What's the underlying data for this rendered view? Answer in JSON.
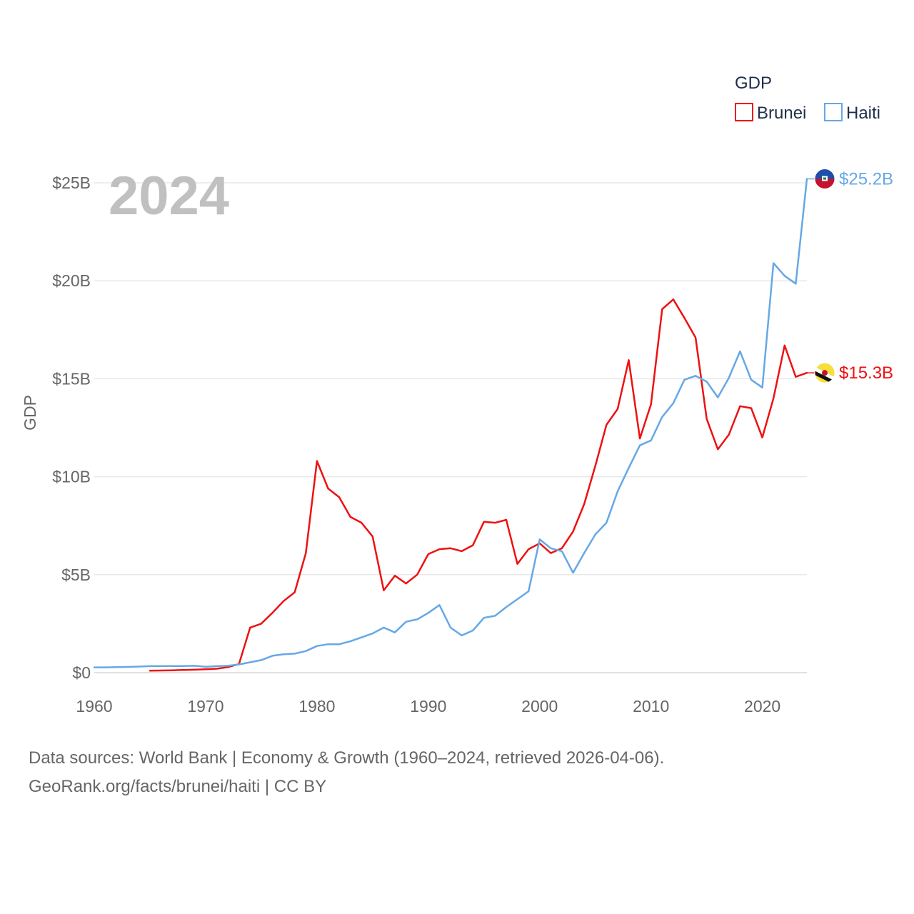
{
  "chart_data": {
    "type": "line",
    "title": "GDP",
    "xlabel": "",
    "ylabel": "GDP",
    "highlight_year": "2024",
    "xlim": [
      1960,
      2024
    ],
    "ylim": [
      0,
      25
    ],
    "x_ticks": [
      1960,
      1970,
      1980,
      1990,
      2000,
      2010,
      2020
    ],
    "x_tick_labels": [
      "1960",
      "1970",
      "1980",
      "1990",
      "2000",
      "2010",
      "2020"
    ],
    "y_ticks": [
      0,
      5,
      10,
      15,
      20,
      25
    ],
    "y_tick_labels": [
      "$0",
      "$5B",
      "$10B",
      "$15B",
      "$20B",
      "$25B"
    ],
    "grid": true,
    "legend": {
      "title": "GDP",
      "position": "top-right"
    },
    "series": [
      {
        "name": "Brunei",
        "color": "#ee1111",
        "icon": "brunei-flag-icon",
        "end_label": "$15.3B",
        "x": [
          1965,
          1966,
          1967,
          1968,
          1969,
          1970,
          1971,
          1972,
          1973,
          1974,
          1975,
          1976,
          1977,
          1978,
          1979,
          1980,
          1981,
          1982,
          1983,
          1984,
          1985,
          1986,
          1987,
          1988,
          1989,
          1990,
          1991,
          1992,
          1993,
          1994,
          1995,
          1996,
          1997,
          1998,
          1999,
          2000,
          2001,
          2002,
          2003,
          2004,
          2005,
          2006,
          2007,
          2008,
          2009,
          2010,
          2011,
          2012,
          2013,
          2014,
          2015,
          2016,
          2017,
          2018,
          2019,
          2020,
          2021,
          2022,
          2023,
          2024
        ],
        "values": [
          0.1,
          0.11,
          0.12,
          0.14,
          0.15,
          0.17,
          0.2,
          0.28,
          0.44,
          2.3,
          2.5,
          3.05,
          3.65,
          4.1,
          6.1,
          10.8,
          9.4,
          8.95,
          7.95,
          7.65,
          6.95,
          4.2,
          4.95,
          4.55,
          5.0,
          6.05,
          6.3,
          6.35,
          6.2,
          6.5,
          7.7,
          7.65,
          7.8,
          5.55,
          6.3,
          6.6,
          6.1,
          6.35,
          7.2,
          8.6,
          10.55,
          12.65,
          13.45,
          15.95,
          11.95,
          13.7,
          18.55,
          19.05,
          18.1,
          17.1,
          12.95,
          11.4,
          12.15,
          13.6,
          13.5,
          12.0,
          14.0,
          16.7,
          15.1,
          15.3
        ]
      },
      {
        "name": "Haiti",
        "color": "#66a8e6",
        "icon": "haiti-flag-icon",
        "end_label": "$25.2B",
        "x": [
          1960,
          1961,
          1962,
          1963,
          1964,
          1965,
          1966,
          1967,
          1968,
          1969,
          1970,
          1971,
          1972,
          1973,
          1974,
          1975,
          1976,
          1977,
          1978,
          1979,
          1980,
          1981,
          1982,
          1983,
          1984,
          1985,
          1986,
          1987,
          1988,
          1989,
          1990,
          1991,
          1992,
          1993,
          1994,
          1995,
          1996,
          1997,
          1998,
          1999,
          2000,
          2001,
          2002,
          2003,
          2004,
          2005,
          2006,
          2007,
          2008,
          2009,
          2010,
          2011,
          2012,
          2013,
          2014,
          2015,
          2016,
          2017,
          2018,
          2019,
          2020,
          2021,
          2022,
          2023,
          2024
        ],
        "values": [
          0.27,
          0.27,
          0.28,
          0.29,
          0.31,
          0.33,
          0.34,
          0.34,
          0.34,
          0.35,
          0.3,
          0.33,
          0.35,
          0.42,
          0.53,
          0.64,
          0.86,
          0.94,
          0.97,
          1.1,
          1.36,
          1.45,
          1.45,
          1.6,
          1.8,
          2.0,
          2.3,
          2.05,
          2.6,
          2.72,
          3.05,
          3.45,
          2.3,
          1.9,
          2.15,
          2.8,
          2.9,
          3.35,
          3.75,
          4.15,
          6.8,
          6.35,
          6.2,
          5.1,
          6.1,
          7.05,
          7.65,
          9.25,
          10.45,
          11.6,
          11.85,
          13.05,
          13.75,
          14.95,
          15.15,
          14.85,
          14.05,
          15.05,
          16.4,
          14.95,
          14.55,
          20.9,
          20.25,
          19.85,
          25.2
        ]
      }
    ]
  },
  "footer": {
    "line1": "Data sources: World Bank | Economy & Growth (1960–2024, retrieved 2026-04-06).",
    "line2": "GeoRank.org/facts/brunei/haiti | CC BY"
  }
}
